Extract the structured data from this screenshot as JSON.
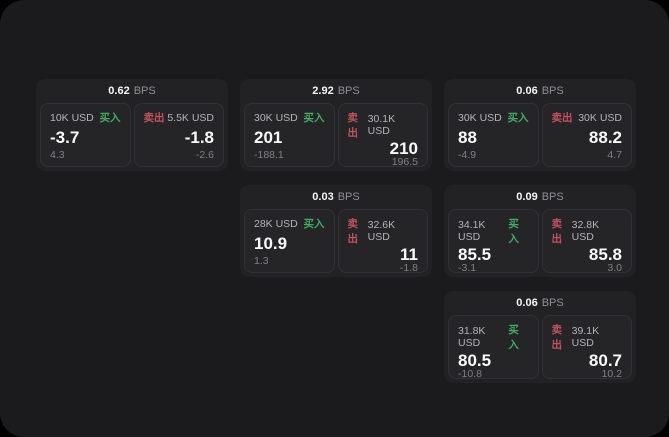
{
  "theme": {
    "background": "#000000",
    "panel_background": "#1b1b1d",
    "card_background": "#222224",
    "tile_background": "#252528",
    "buy_color": "#3fae60",
    "sell_color": "#c4515c",
    "value_color": "#fafafa",
    "muted_color": "#8f8f94"
  },
  "labels": {
    "bps_unit": "BPS",
    "buy": "买入",
    "sell": "卖出"
  },
  "cards": [
    {
      "bps": "0.62",
      "buy": {
        "amount": "10K USD",
        "value": "-3.7",
        "change": "4.3"
      },
      "sell": {
        "amount": "5.5K USD",
        "value": "-1.8",
        "change": "-2.6"
      }
    },
    {
      "bps": "2.92",
      "buy": {
        "amount": "30K USD",
        "value": "201",
        "change": "-188.1"
      },
      "sell": {
        "amount": "30.1K USD",
        "value": "210",
        "change": "196.5"
      }
    },
    {
      "bps": "0.06",
      "buy": {
        "amount": "30K USD",
        "value": "88",
        "change": "-4.9"
      },
      "sell": {
        "amount": "30K USD",
        "value": "88.2",
        "change": "4.7"
      }
    },
    {
      "bps": "0.03",
      "buy": {
        "amount": "28K USD",
        "value": "10.9",
        "change": "1.3"
      },
      "sell": {
        "amount": "32.6K USD",
        "value": "11",
        "change": "-1.8"
      }
    },
    {
      "bps": "0.09",
      "buy": {
        "amount": "34.1K USD",
        "value": "85.5",
        "change": "-3.1"
      },
      "sell": {
        "amount": "32.8K USD",
        "value": "85.8",
        "change": "3.0"
      }
    },
    {
      "bps": "0.06",
      "buy": {
        "amount": "31.8K USD",
        "value": "80.5",
        "change": "-10.8"
      },
      "sell": {
        "amount": "39.1K USD",
        "value": "80.7",
        "change": "10.2"
      }
    }
  ]
}
